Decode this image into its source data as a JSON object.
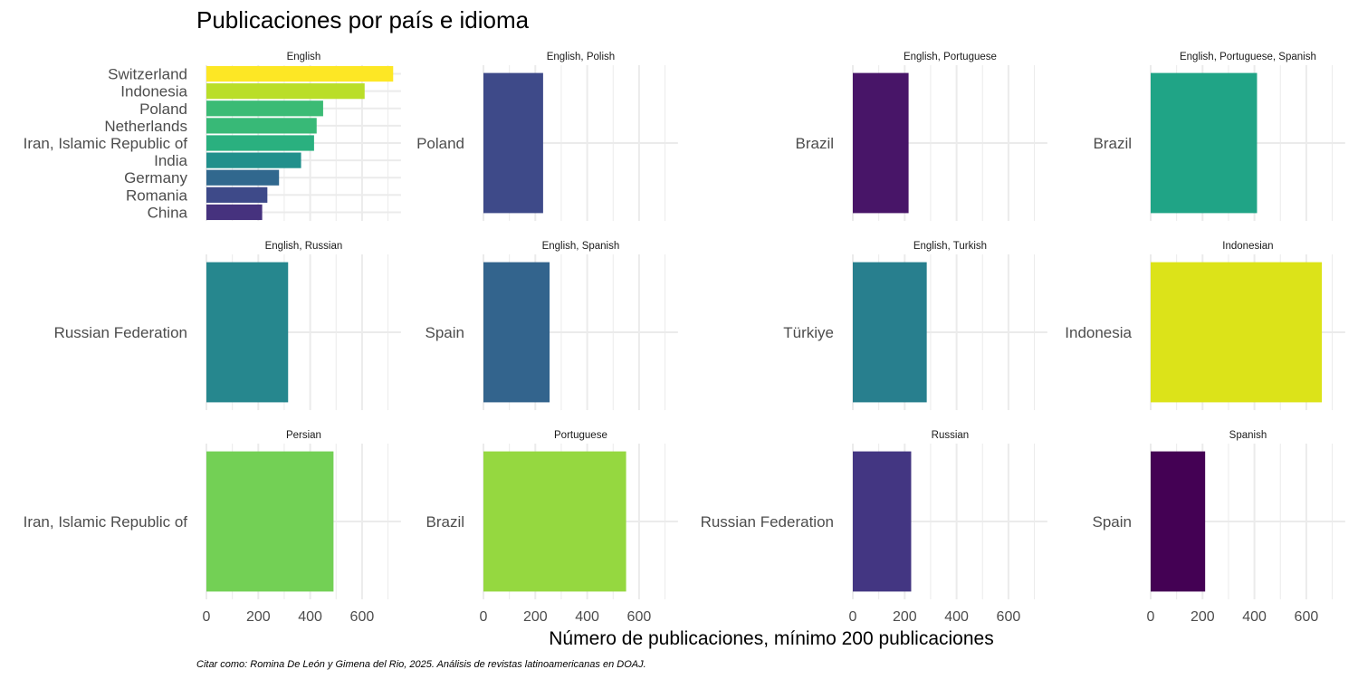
{
  "chart_data": {
    "type": "bar",
    "orientation": "horizontal",
    "title": "Publicaciones por país e idioma",
    "xlabel": "Número de publicaciones, mínimo 200 publicaciones",
    "caption": "Citar como: Romina De León y Gimena del Rio, 2025. Análisis de revistas latinoamericanas en DOAJ.",
    "xlim": [
      0,
      750
    ],
    "x_ticks": [
      0,
      200,
      400,
      600
    ],
    "x_tick_labels": [
      "0",
      "200",
      "400",
      "600"
    ],
    "grid": true,
    "legend": "none",
    "panels": [
      {
        "label": "English",
        "categories": [
          "Switzerland",
          "Indonesia",
          "Poland",
          "Netherlands",
          "Iran, Islamic Republic of",
          "India",
          "Germany",
          "Romania",
          "China"
        ],
        "values": [
          720,
          610,
          450,
          425,
          415,
          365,
          280,
          235,
          215
        ],
        "colors": [
          "#FDE725",
          "#BADE28",
          "#3BBB75",
          "#38B977",
          "#2AB07F",
          "#21908C",
          "#31688E",
          "#3E4A89",
          "#46327E"
        ]
      },
      {
        "label": "English, Polish",
        "categories": [
          "Poland"
        ],
        "values": [
          230
        ],
        "colors": [
          "#3E4A89"
        ]
      },
      {
        "label": "English, Portuguese",
        "categories": [
          "Brazil"
        ],
        "values": [
          215
        ],
        "colors": [
          "#481568"
        ]
      },
      {
        "label": "English, Portuguese, Spanish",
        "categories": [
          "Brazil"
        ],
        "values": [
          410
        ],
        "colors": [
          "#20A486"
        ]
      },
      {
        "label": "English, Russian",
        "categories": [
          "Russian Federation"
        ],
        "values": [
          315
        ],
        "colors": [
          "#26878E"
        ]
      },
      {
        "label": "English, Spanish",
        "categories": [
          "Spain"
        ],
        "values": [
          255
        ],
        "colors": [
          "#33648D"
        ]
      },
      {
        "label": "English, Turkish",
        "categories": [
          "Türkiye"
        ],
        "values": [
          285
        ],
        "colors": [
          "#287F8E"
        ]
      },
      {
        "label": "Indonesian",
        "categories": [
          "Indonesia"
        ],
        "values": [
          660
        ],
        "colors": [
          "#DCE319"
        ]
      },
      {
        "label": "Persian",
        "categories": [
          "Iran, Islamic Republic of"
        ],
        "values": [
          490
        ],
        "colors": [
          "#73D055"
        ]
      },
      {
        "label": "Portuguese",
        "categories": [
          "Brazil"
        ],
        "values": [
          550
        ],
        "colors": [
          "#95D840"
        ]
      },
      {
        "label": "Russian",
        "categories": [
          "Russian Federation"
        ],
        "values": [
          225
        ],
        "colors": [
          "#433682"
        ]
      },
      {
        "label": "Spanish",
        "categories": [
          "Spain"
        ],
        "values": [
          210
        ],
        "colors": [
          "#440154"
        ]
      }
    ]
  }
}
